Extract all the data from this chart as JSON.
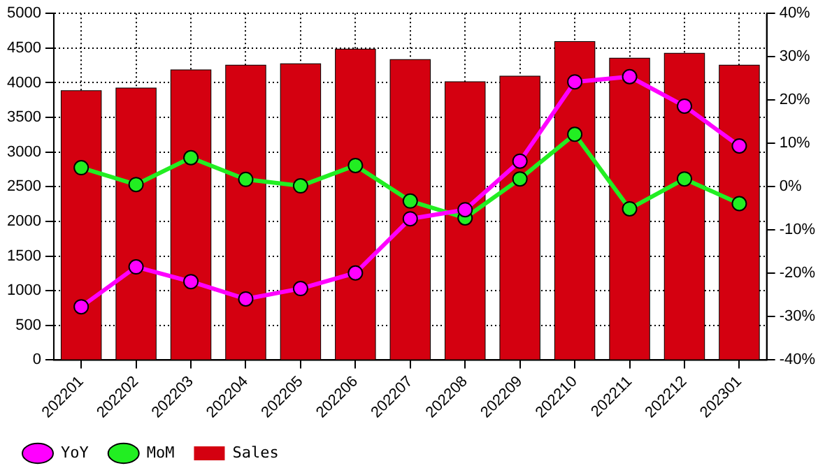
{
  "chart_data": {
    "type": "bar",
    "categories": [
      "202201",
      "202202",
      "202203",
      "202204",
      "202205",
      "202206",
      "202207",
      "202208",
      "202209",
      "202210",
      "202211",
      "202212",
      "202301"
    ],
    "series": [
      {
        "name": "YoY",
        "type": "line",
        "axis": "y2",
        "color": "#ff00ff",
        "values": [
          -27.7,
          -18.5,
          -21.9,
          -25.9,
          -23.5,
          -19.9,
          -7.4,
          -5.3,
          5.9,
          24.2,
          25.4,
          18.6,
          9.4
        ]
      },
      {
        "name": "MoM",
        "type": "line",
        "axis": "y2",
        "color": "#22ee22",
        "values": [
          4.4,
          0.5,
          6.7,
          1.7,
          0.2,
          4.9,
          -3.3,
          -7.2,
          1.8,
          12.1,
          -5.1,
          1.8,
          -3.9
        ]
      },
      {
        "name": "Sales",
        "type": "bar",
        "color": "#d40010",
        "values": [
          3880,
          3920,
          4180,
          4250,
          4270,
          4480,
          4330,
          4010,
          4090,
          4590,
          4350,
          4420,
          4250
        ]
      }
    ],
    "ylim": [
      0,
      5000
    ],
    "yticks": [
      0,
      500,
      1000,
      1500,
      2000,
      2500,
      3000,
      3500,
      4000,
      4500,
      5000
    ],
    "y2lim": [
      -40,
      40
    ],
    "y2ticks": [
      {
        "value": -40,
        "label": "-40%"
      },
      {
        "value": -30,
        "label": "-30%"
      },
      {
        "value": -20,
        "label": "-20%"
      },
      {
        "value": -10,
        "label": "-10%"
      },
      {
        "value": 0,
        "label": "0%"
      },
      {
        "value": 10,
        "label": "10%"
      },
      {
        "value": 20,
        "label": "20%"
      },
      {
        "value": 30,
        "label": "30%"
      },
      {
        "value": 40,
        "label": "40%"
      }
    ],
    "grid": true,
    "legend": "bottom left",
    "marker": "circle",
    "line_style": "solid"
  }
}
